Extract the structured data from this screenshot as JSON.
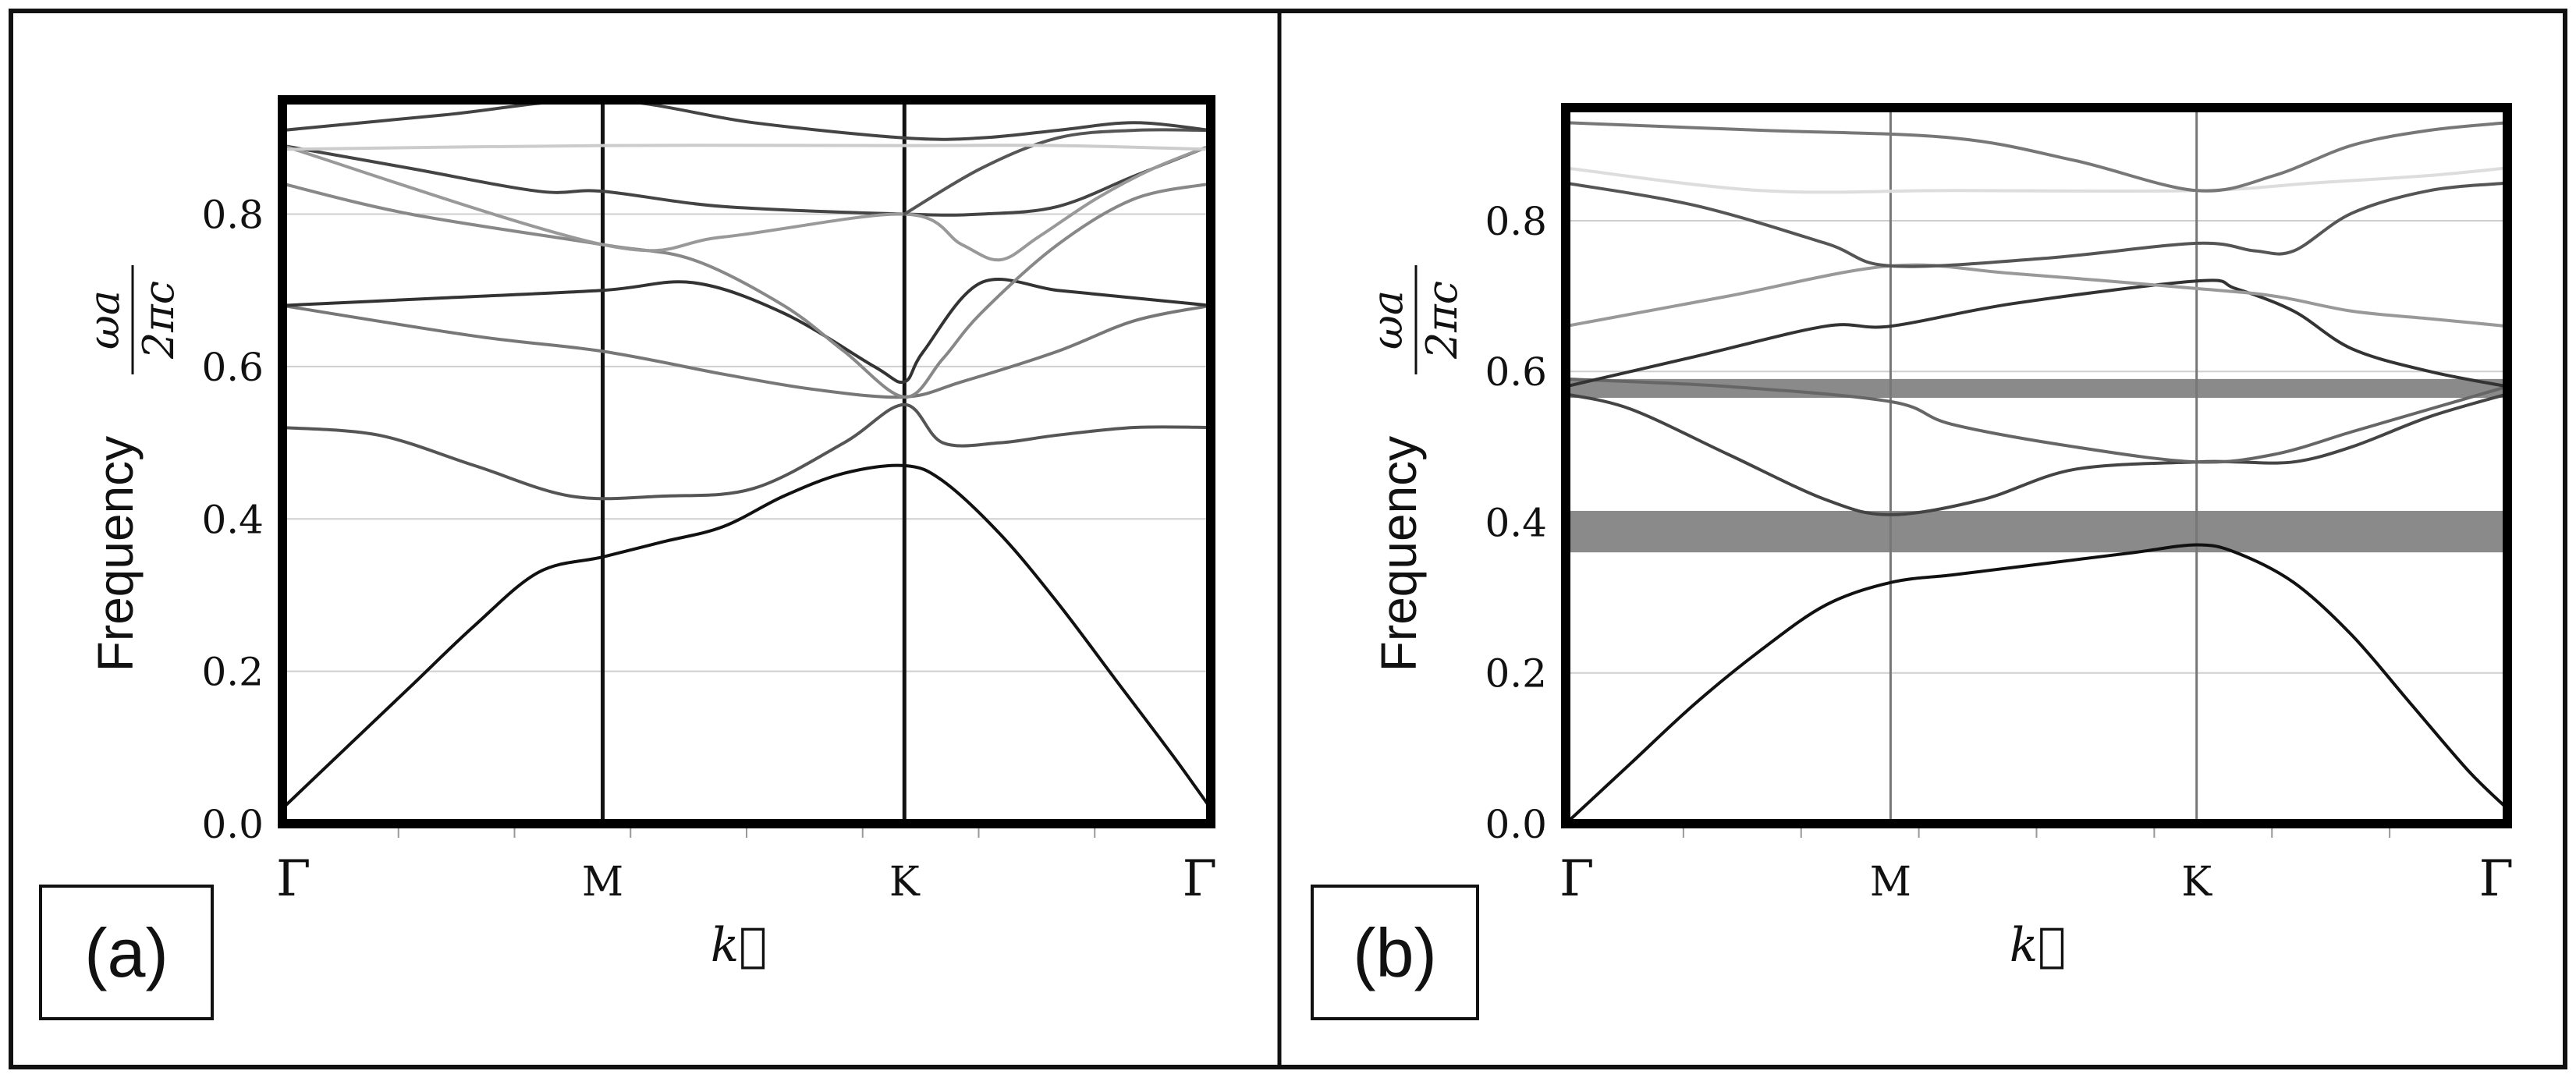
{
  "chart_data": [
    {
      "type": "line",
      "panel_label": "(a)",
      "ylabel_text": "Frequency",
      "ylabel_formula": {
        "numerator": "ωa",
        "denominator": "2πc"
      },
      "xlabel": "k⃗",
      "x_ticks": [
        "Γ",
        "M",
        "K",
        "Γ"
      ],
      "y_ticks": [
        "0.0",
        "0.2",
        "0.4",
        "0.6",
        "0.8"
      ],
      "ylim": [
        0,
        0.95
      ],
      "grid": true,
      "band_gaps": [],
      "series": [
        {
          "color": "#111111",
          "points": [
            [
              0,
              0.02
            ],
            [
              0.1,
              0.1
            ],
            [
              0.2,
              0.18
            ],
            [
              0.3,
              0.26
            ],
            [
              0.4,
              0.33
            ],
            [
              0.5,
              0.35
            ],
            [
              0.6,
              0.37
            ],
            [
              0.7,
              0.39
            ],
            [
              0.8,
              0.43
            ],
            [
              0.9,
              0.46
            ],
            [
              1.0,
              0.47
            ],
            [
              1.1,
              0.45
            ],
            [
              1.25,
              0.38
            ],
            [
              1.4,
              0.29
            ],
            [
              1.55,
              0.19
            ],
            [
              1.7,
              0.09
            ],
            [
              1.8,
              0.02
            ]
          ]
        },
        {
          "color": "#555555",
          "points": [
            [
              0,
              0.52
            ],
            [
              0.15,
              0.51
            ],
            [
              0.3,
              0.47
            ],
            [
              0.45,
              0.43
            ],
            [
              0.6,
              0.43
            ],
            [
              0.75,
              0.44
            ],
            [
              0.9,
              0.5
            ],
            [
              1.0,
              0.55
            ],
            [
              1.1,
              0.5
            ],
            [
              1.25,
              0.5
            ],
            [
              1.4,
              0.51
            ],
            [
              1.6,
              0.52
            ],
            [
              1.8,
              0.52
            ]
          ]
        },
        {
          "color": "#777777",
          "points": [
            [
              0,
              0.68
            ],
            [
              0.3,
              0.64
            ],
            [
              0.5,
              0.62
            ],
            [
              0.7,
              0.59
            ],
            [
              0.85,
              0.57
            ],
            [
              1.0,
              0.56
            ],
            [
              1.15,
              0.58
            ],
            [
              1.4,
              0.62
            ],
            [
              1.6,
              0.66
            ],
            [
              1.8,
              0.68
            ]
          ]
        },
        {
          "color": "#333333",
          "points": [
            [
              0,
              0.68
            ],
            [
              0.25,
              0.69
            ],
            [
              0.5,
              0.7
            ],
            [
              0.65,
              0.71
            ],
            [
              0.8,
              0.67
            ],
            [
              0.95,
              0.6
            ],
            [
              1.0,
              0.58
            ],
            [
              1.05,
              0.62
            ],
            [
              1.2,
              0.71
            ],
            [
              1.4,
              0.7
            ],
            [
              1.6,
              0.69
            ],
            [
              1.8,
              0.68
            ]
          ]
        },
        {
          "color": "#888888",
          "points": [
            [
              0,
              0.84
            ],
            [
              0.2,
              0.8
            ],
            [
              0.5,
              0.76
            ],
            [
              0.65,
              0.74
            ],
            [
              0.8,
              0.68
            ],
            [
              0.9,
              0.62
            ],
            [
              1.0,
              0.56
            ],
            [
              1.1,
              0.61
            ],
            [
              1.2,
              0.67
            ],
            [
              1.4,
              0.76
            ],
            [
              1.6,
              0.82
            ],
            [
              1.8,
              0.84
            ]
          ]
        },
        {
          "color": "#444444",
          "points": [
            [
              0,
              0.89
            ],
            [
              0.2,
              0.86
            ],
            [
              0.4,
              0.83
            ],
            [
              0.5,
              0.83
            ],
            [
              0.7,
              0.81
            ],
            [
              1.0,
              0.8
            ],
            [
              1.2,
              0.8
            ],
            [
              1.4,
              0.81
            ],
            [
              1.6,
              0.85
            ],
            [
              1.8,
              0.89
            ]
          ]
        },
        {
          "color": "#999999",
          "points": [
            [
              0,
              0.89
            ],
            [
              0.5,
              0.76
            ],
            [
              0.7,
              0.77
            ],
            [
              1.0,
              0.8
            ],
            [
              1.15,
              0.76
            ],
            [
              1.25,
              0.74
            ],
            [
              1.35,
              0.77
            ],
            [
              1.5,
              0.82
            ],
            [
              1.65,
              0.86
            ],
            [
              1.8,
              0.89
            ]
          ]
        },
        {
          "color": "#555555",
          "points": [
            [
              1.0,
              0.8
            ],
            [
              1.2,
              0.86
            ],
            [
              1.4,
              0.9
            ],
            [
              1.6,
              0.91
            ],
            [
              1.8,
              0.91
            ]
          ]
        },
        {
          "color": "#cccccc",
          "points": [
            [
              0,
              0.885
            ],
            [
              0.5,
              0.89
            ],
            [
              1.0,
              0.89
            ],
            [
              1.4,
              0.89
            ],
            [
              1.8,
              0.885
            ]
          ]
        },
        {
          "color": "#444444",
          "points": [
            [
              0,
              0.91
            ],
            [
              0.25,
              0.93
            ],
            [
              0.5,
              0.95
            ],
            [
              0.75,
              0.92
            ],
            [
              1.0,
              0.9
            ],
            [
              1.2,
              0.9
            ],
            [
              1.4,
              0.91
            ],
            [
              1.6,
              0.92
            ],
            [
              1.8,
              0.91
            ]
          ]
        }
      ]
    },
    {
      "type": "line",
      "panel_label": "(b)",
      "ylabel_text": "Frequency",
      "ylabel_formula": {
        "numerator": "ωa",
        "denominator": "2πc"
      },
      "xlabel": "k⃗",
      "x_ticks": [
        "Γ",
        "M",
        "K",
        "Γ"
      ],
      "y_ticks": [
        "0.0",
        "0.2",
        "0.4",
        "0.6",
        "0.8"
      ],
      "ylim": [
        0,
        0.95
      ],
      "grid": true,
      "band_gaps": [
        [
          0.565,
          0.59
        ],
        [
          0.36,
          0.415
        ]
      ],
      "series": [
        {
          "color": "#111111",
          "points": [
            [
              0,
              0.0
            ],
            [
              0.1,
              0.08
            ],
            [
              0.2,
              0.16
            ],
            [
              0.3,
              0.23
            ],
            [
              0.4,
              0.29
            ],
            [
              0.5,
              0.32
            ],
            [
              0.6,
              0.33
            ],
            [
              0.7,
              0.34
            ],
            [
              0.8,
              0.35
            ],
            [
              0.9,
              0.36
            ],
            [
              1.0,
              0.37
            ],
            [
              1.1,
              0.36
            ],
            [
              1.25,
              0.32
            ],
            [
              1.4,
              0.25
            ],
            [
              1.55,
              0.16
            ],
            [
              1.7,
              0.07
            ],
            [
              1.8,
              0.02
            ]
          ]
        },
        {
          "color": "#444444",
          "points": [
            [
              0,
              0.57
            ],
            [
              0.1,
              0.55
            ],
            [
              0.25,
              0.49
            ],
            [
              0.4,
              0.43
            ],
            [
              0.5,
              0.41
            ],
            [
              0.65,
              0.43
            ],
            [
              0.8,
              0.47
            ],
            [
              1.0,
              0.48
            ],
            [
              1.1,
              0.48
            ],
            [
              1.25,
              0.48
            ],
            [
              1.4,
              0.5
            ],
            [
              1.6,
              0.54
            ],
            [
              1.8,
              0.57
            ]
          ]
        },
        {
          "color": "#666666",
          "points": [
            [
              0,
              0.59
            ],
            [
              0.25,
              0.58
            ],
            [
              0.5,
              0.56
            ],
            [
              0.6,
              0.53
            ],
            [
              0.8,
              0.5
            ],
            [
              1.0,
              0.48
            ],
            [
              1.2,
              0.49
            ],
            [
              1.4,
              0.52
            ],
            [
              1.6,
              0.55
            ],
            [
              1.8,
              0.58
            ]
          ]
        },
        {
          "color": "#333333",
          "points": [
            [
              0,
              0.58
            ],
            [
              0.2,
              0.62
            ],
            [
              0.4,
              0.66
            ],
            [
              0.5,
              0.66
            ],
            [
              0.7,
              0.69
            ],
            [
              1.0,
              0.72
            ],
            [
              1.1,
              0.71
            ],
            [
              1.25,
              0.68
            ],
            [
              1.4,
              0.63
            ],
            [
              1.6,
              0.6
            ],
            [
              1.8,
              0.58
            ]
          ]
        },
        {
          "color": "#999999",
          "points": [
            [
              0,
              0.66
            ],
            [
              0.25,
              0.7
            ],
            [
              0.5,
              0.74
            ],
            [
              0.7,
              0.73
            ],
            [
              1.0,
              0.71
            ],
            [
              1.2,
              0.7
            ],
            [
              1.4,
              0.68
            ],
            [
              1.6,
              0.67
            ],
            [
              1.8,
              0.66
            ]
          ]
        },
        {
          "color": "#555555",
          "points": [
            [
              0,
              0.85
            ],
            [
              0.2,
              0.82
            ],
            [
              0.4,
              0.77
            ],
            [
              0.5,
              0.74
            ],
            [
              0.75,
              0.75
            ],
            [
              1.0,
              0.77
            ],
            [
              1.15,
              0.76
            ],
            [
              1.25,
              0.76
            ],
            [
              1.4,
              0.81
            ],
            [
              1.6,
              0.84
            ],
            [
              1.8,
              0.85
            ]
          ]
        },
        {
          "color": "#dddddd",
          "points": [
            [
              0,
              0.87
            ],
            [
              0.3,
              0.84
            ],
            [
              0.6,
              0.84
            ],
            [
              1.0,
              0.84
            ],
            [
              1.3,
              0.85
            ],
            [
              1.6,
              0.86
            ],
            [
              1.8,
              0.87
            ]
          ]
        },
        {
          "color": "#777777",
          "points": [
            [
              0,
              0.93
            ],
            [
              0.3,
              0.92
            ],
            [
              0.6,
              0.91
            ],
            [
              0.8,
              0.88
            ],
            [
              1.0,
              0.84
            ],
            [
              1.2,
              0.86
            ],
            [
              1.4,
              0.9
            ],
            [
              1.6,
              0.92
            ],
            [
              1.8,
              0.93
            ]
          ]
        }
      ]
    }
  ]
}
